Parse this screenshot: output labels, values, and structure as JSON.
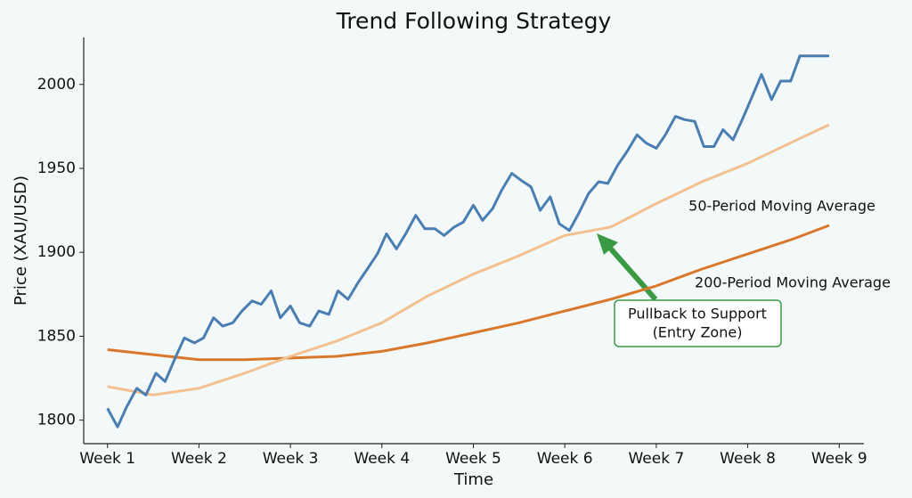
{
  "chart_data": {
    "type": "line",
    "title": "Trend Following Strategy",
    "xlabel": "Time",
    "ylabel": "Price (XAU/USD)",
    "xlim": [
      0.74,
      9.27
    ],
    "ylim": [
      1786,
      2028
    ],
    "xticks": [
      {
        "value": 1,
        "label": "Week 1"
      },
      {
        "value": 2,
        "label": "Week 2"
      },
      {
        "value": 3,
        "label": "Week 3"
      },
      {
        "value": 4,
        "label": "Week 4"
      },
      {
        "value": 5,
        "label": "Week 5"
      },
      {
        "value": 6,
        "label": "Week 6"
      },
      {
        "value": 7,
        "label": "Week 7"
      },
      {
        "value": 8,
        "label": "Week 8"
      },
      {
        "value": 9,
        "label": "Week 9"
      }
    ],
    "yticks": [
      1800,
      1850,
      1900,
      1950,
      2000
    ],
    "grid": false,
    "series": [
      {
        "color": "#4a7eb0",
        "x": [
          1.0,
          1.11,
          1.21,
          1.32,
          1.42,
          1.53,
          1.63,
          1.74,
          1.84,
          1.95,
          2.05,
          2.16,
          2.26,
          2.37,
          2.47,
          2.58,
          2.68,
          2.79,
          2.89,
          3.0,
          3.1,
          3.21,
          3.31,
          3.42,
          3.52,
          3.63,
          3.74,
          3.84,
          3.95,
          4.05,
          4.16,
          4.26,
          4.37,
          4.47,
          4.58,
          4.68,
          4.79,
          4.89,
          5.0,
          5.1,
          5.21,
          5.31,
          5.42,
          5.52,
          5.63,
          5.73,
          5.84,
          5.94,
          6.05,
          6.15,
          6.26,
          6.37,
          6.47,
          6.58,
          6.68,
          6.79,
          6.89,
          7.0,
          7.1,
          7.21,
          7.31,
          7.42,
          7.52,
          7.63,
          7.73,
          7.84,
          7.94,
          8.05,
          8.15,
          8.26,
          8.36,
          8.47,
          8.57,
          8.68,
          8.78,
          8.89
        ],
        "values": [
          1807,
          1796,
          1808,
          1819,
          1815,
          1828,
          1823,
          1837,
          1849,
          1846,
          1849,
          1861,
          1856,
          1858,
          1865,
          1871,
          1869,
          1877,
          1861,
          1868,
          1858,
          1856,
          1865,
          1863,
          1877,
          1872,
          1882,
          1890,
          1899,
          1911,
          1902,
          1911,
          1922,
          1914,
          1914,
          1910,
          1915,
          1918,
          1928,
          1919,
          1926,
          1937,
          1947,
          1943,
          1939,
          1925,
          1933,
          1917,
          1913,
          1923,
          1935,
          1942,
          1941,
          1952,
          1960,
          1970,
          1965,
          1962,
          1970,
          1981,
          1979,
          1978,
          1963,
          1963,
          1973,
          1967,
          1979,
          1993,
          2006,
          1991,
          2002,
          2002,
          2017,
          2017,
          2017,
          2017
        ]
      },
      {
        "name": "50-Period Moving Average",
        "color": "#f3c08f",
        "x": [
          1,
          1.5,
          2,
          2.5,
          3,
          3.5,
          4,
          4.5,
          5,
          5.5,
          6,
          6.5,
          7,
          7.5,
          8,
          8.5,
          8.89
        ],
        "values": [
          1820,
          1815,
          1819,
          1828,
          1838,
          1847,
          1858,
          1874,
          1887,
          1898,
          1910,
          1915,
          1929,
          1942,
          1953,
          1966,
          1976
        ]
      },
      {
        "name": "200-Period Moving Average",
        "color": "#d9782a",
        "x": [
          1,
          1.5,
          2,
          2.5,
          3,
          3.5,
          4,
          4.5,
          5,
          5.5,
          6,
          6.5,
          7,
          7.5,
          8,
          8.5,
          8.89
        ],
        "values": [
          1842,
          1839,
          1836,
          1836,
          1837,
          1838,
          1841,
          1846,
          1852,
          1858,
          1865,
          1872,
          1880,
          1890,
          1899,
          1908,
          1916
        ]
      }
    ],
    "annotation": [
      "Pullback to Support",
      "(Entry Zone)"
    ]
  }
}
